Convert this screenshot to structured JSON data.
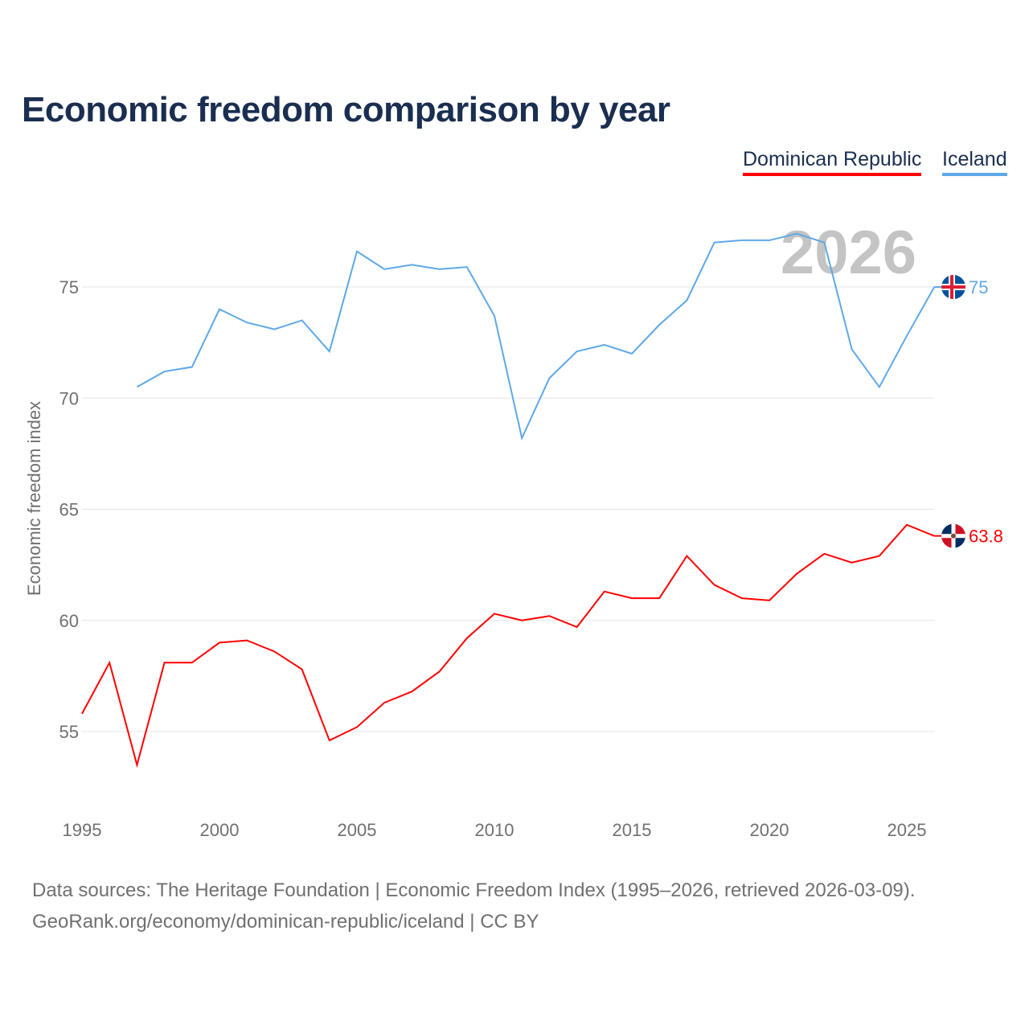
{
  "chart_data": {
    "type": "line",
    "title": "Economic freedom comparison by year",
    "xlabel": "",
    "ylabel": "Economic freedom index",
    "xlim": [
      1995,
      2026
    ],
    "ylim": [
      51.5,
      80
    ],
    "x_ticks": [
      1995,
      2000,
      2005,
      2010,
      2015,
      2020,
      2025
    ],
    "y_ticks": [
      55,
      60,
      65,
      70,
      75
    ],
    "grid": true,
    "legend_placement": "top-right",
    "year_watermark": "2026",
    "series": [
      {
        "name": "Dominican Republic",
        "color": "#ff0000",
        "end_label": "63.8",
        "x": [
          1995,
          1996,
          1997,
          1998,
          1999,
          2000,
          2001,
          2002,
          2003,
          2004,
          2005,
          2006,
          2007,
          2008,
          2009,
          2010,
          2011,
          2012,
          2013,
          2014,
          2015,
          2016,
          2017,
          2018,
          2019,
          2020,
          2021,
          2022,
          2023,
          2024,
          2025,
          2026
        ],
        "values": [
          55.8,
          58.1,
          53.5,
          58.1,
          58.1,
          59.0,
          59.1,
          58.6,
          57.8,
          54.6,
          55.2,
          56.3,
          56.8,
          57.7,
          59.2,
          60.3,
          60.0,
          60.2,
          59.7,
          61.3,
          61.0,
          61.0,
          62.9,
          61.6,
          61.0,
          60.9,
          62.1,
          63.0,
          62.6,
          62.9,
          64.3,
          63.8
        ]
      },
      {
        "name": "Iceland",
        "color": "#5ea8e8",
        "end_label": "75",
        "x": [
          1997,
          1998,
          1999,
          2000,
          2001,
          2002,
          2003,
          2004,
          2005,
          2006,
          2007,
          2008,
          2009,
          2010,
          2011,
          2012,
          2013,
          2014,
          2015,
          2016,
          2017,
          2018,
          2019,
          2020,
          2021,
          2022,
          2023,
          2024,
          2025,
          2026
        ],
        "values": [
          70.5,
          71.2,
          71.4,
          74.0,
          73.4,
          73.1,
          73.5,
          72.1,
          76.6,
          75.8,
          76.0,
          75.8,
          75.9,
          73.7,
          68.2,
          70.9,
          72.1,
          72.4,
          72.0,
          73.3,
          74.4,
          77.0,
          77.1,
          77.1,
          77.4,
          77.0,
          72.2,
          70.5,
          72.8,
          75.0
        ]
      }
    ]
  },
  "source": {
    "line1": "Data sources: The Heritage Foundation | Economic Freedom Index (1995–2026, retrieved 2026-03-09).",
    "line2": "GeoRank.org/economy/dominican-republic/iceland | CC BY"
  }
}
